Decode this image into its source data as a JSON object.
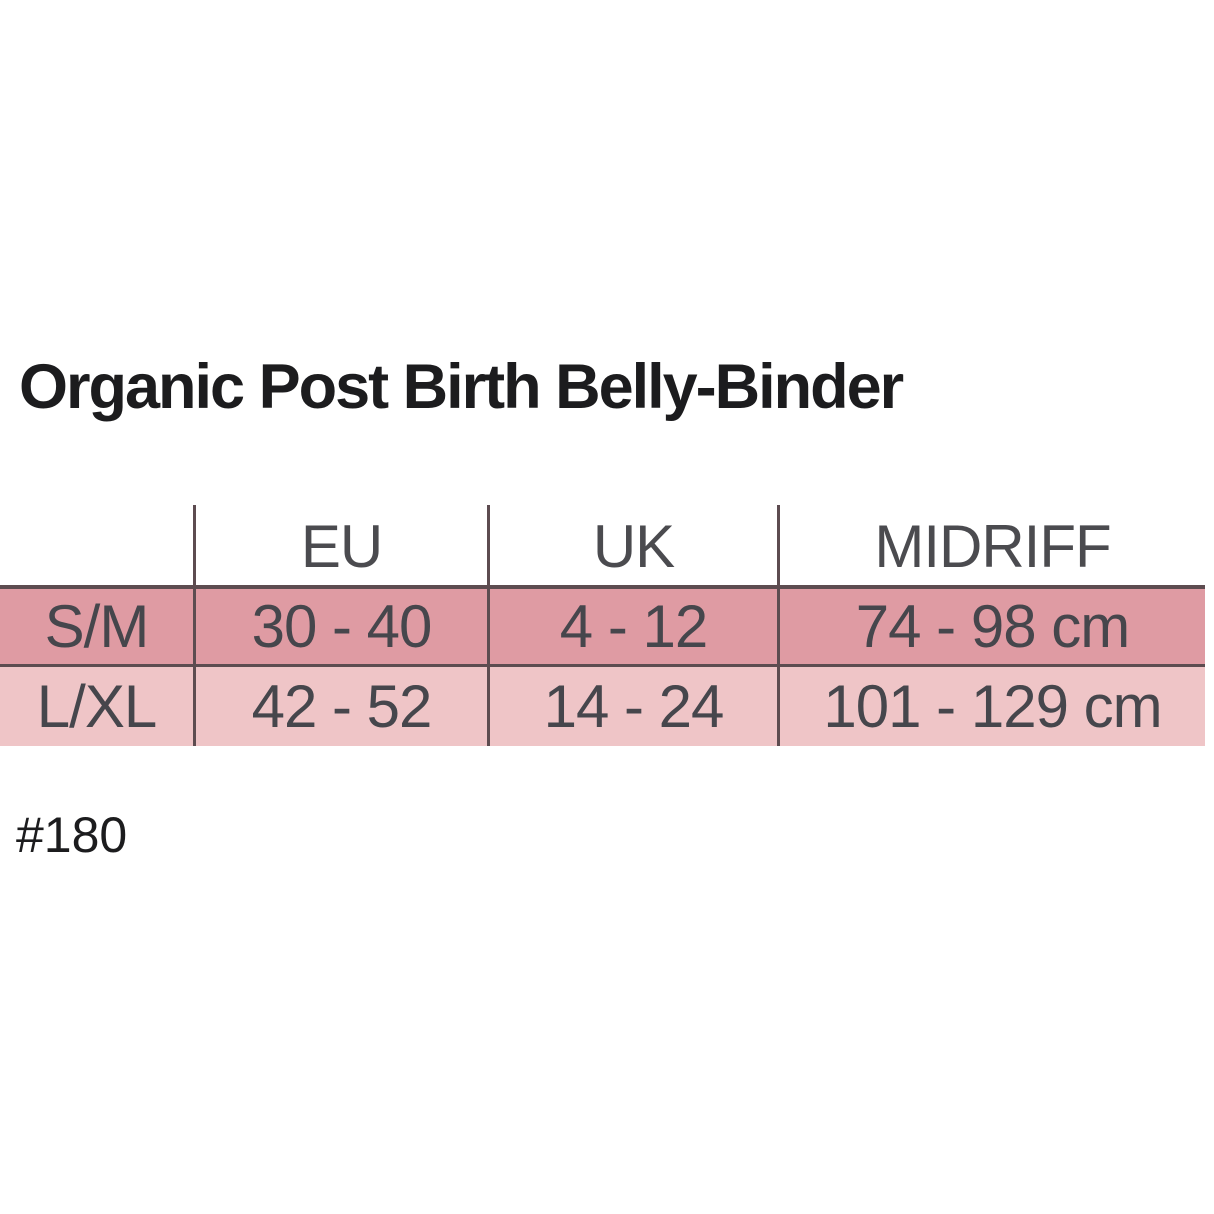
{
  "title": "Organic Post Birth Belly-Binder",
  "size_table": {
    "headers": [
      "",
      "EU",
      "UK",
      "MIDRIFF"
    ],
    "rows": [
      {
        "size": "S/M",
        "eu": "30 - 40",
        "uk": "4 - 12",
        "midriff": "74 - 98 cm"
      },
      {
        "size": "L/XL",
        "eu": "42 - 52",
        "uk": "14 - 24",
        "midriff": "101 - 129 cm"
      }
    ]
  },
  "footnote": "#180",
  "colors": {
    "row_sm_background": "#df9ba3",
    "row_lxl_background": "#efc5c7",
    "table_line": "#5d4c50",
    "cell_text": "#46464c",
    "title_text": "#1c1c1e",
    "page_background": "#ffffff"
  }
}
